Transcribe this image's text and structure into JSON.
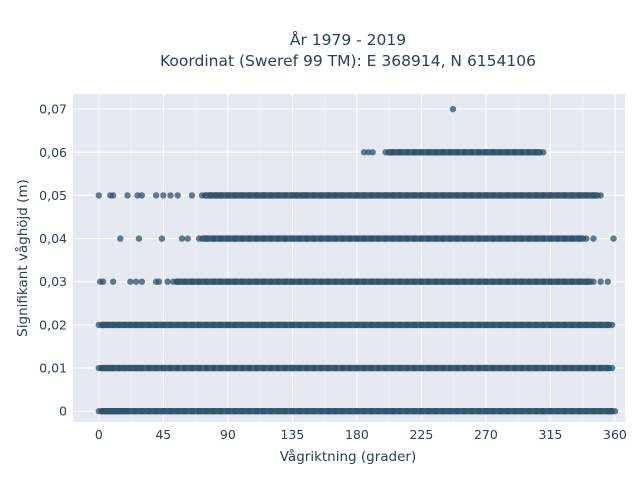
{
  "chart_data": {
    "type": "scatter",
    "title_line1": "År 1979 - 2019",
    "title_line2": "Koordinat (Sweref 99 TM): E 368914, N 6154106",
    "xlabel": "Vågriktning (grader)",
    "ylabel": "Signifikant våghöjd (m)",
    "xlim": [
      -18,
      367
    ],
    "ylim": [
      -0.0025,
      0.0735
    ],
    "xticks": [
      0,
      45,
      90,
      135,
      180,
      225,
      270,
      315,
      360
    ],
    "xtick_labels": [
      "0",
      "45",
      "90",
      "135",
      "180",
      "225",
      "270",
      "315",
      "360"
    ],
    "yticks": [
      0,
      0.01,
      0.02,
      0.03,
      0.04,
      0.05,
      0.06,
      0.07
    ],
    "ytick_labels": [
      "0",
      "0,01",
      "0,02",
      "0,03",
      "0,04",
      "0,05",
      "0,06",
      "0,07"
    ],
    "grid": true,
    "marker_color": "#2e5169",
    "plot_background": "#e5e9f2",
    "series": [
      {
        "x": [
          0,
          2,
          4,
          6,
          8,
          10,
          12,
          14,
          16,
          18,
          20,
          25,
          30,
          35,
          40,
          45,
          50,
          55,
          60,
          65,
          70,
          75,
          80,
          85,
          90,
          95,
          100,
          105,
          110,
          115,
          120,
          125,
          130,
          135,
          140,
          145,
          150,
          155,
          160,
          165,
          170,
          175,
          180,
          185,
          190,
          195,
          200,
          205,
          210,
          215,
          220,
          225,
          230,
          235,
          240,
          245,
          250,
          255,
          260,
          265,
          270,
          275,
          280,
          285,
          290,
          295,
          300,
          305,
          310,
          315,
          320,
          325,
          330,
          335,
          340,
          345,
          350,
          355,
          358,
          360,
          0,
          2,
          4,
          6,
          8,
          10,
          14,
          18,
          22,
          26,
          30,
          35,
          40,
          45,
          50,
          55,
          60,
          65,
          70,
          75,
          80,
          85,
          90,
          95,
          100,
          105,
          110,
          115,
          120,
          125,
          130,
          135,
          140,
          145,
          150,
          155,
          160,
          165,
          170,
          175,
          180,
          185,
          190,
          195,
          200,
          205,
          210,
          215,
          220,
          225,
          230,
          235,
          240,
          245,
          250,
          255,
          260,
          265,
          270,
          275,
          280,
          285,
          290,
          295,
          300,
          305,
          310,
          315,
          320,
          325,
          330,
          335,
          340,
          345,
          350,
          355,
          358,
          0,
          3,
          6,
          10,
          14,
          18,
          22,
          26,
          30,
          35,
          40,
          45,
          50,
          55,
          60,
          65,
          70,
          75,
          80,
          85,
          90,
          95,
          100,
          105,
          110,
          115,
          120,
          125,
          130,
          135,
          140,
          145,
          150,
          155,
          160,
          165,
          170,
          175,
          180,
          185,
          190,
          195,
          200,
          205,
          210,
          215,
          220,
          225,
          230,
          235,
          240,
          245,
          250,
          255,
          260,
          265,
          270,
          275,
          280,
          285,
          290,
          295,
          300,
          305,
          310,
          315,
          320,
          325,
          330,
          335,
          340,
          345,
          350,
          355,
          358,
          1,
          3,
          10,
          22,
          26,
          30,
          40,
          42,
          48,
          52,
          55,
          60,
          65,
          70,
          75,
          80,
          85,
          90,
          95,
          100,
          105,
          110,
          115,
          120,
          125,
          130,
          135,
          140,
          145,
          150,
          155,
          160,
          165,
          170,
          175,
          180,
          185,
          190,
          195,
          200,
          205,
          210,
          215,
          220,
          225,
          230,
          235,
          240,
          245,
          250,
          255,
          260,
          265,
          270,
          275,
          280,
          285,
          290,
          295,
          300,
          305,
          310,
          315,
          320,
          325,
          330,
          335,
          340,
          345,
          350,
          355,
          15,
          28,
          44,
          58,
          62,
          70,
          75,
          80,
          85,
          90,
          95,
          100,
          105,
          110,
          115,
          120,
          125,
          130,
          135,
          140,
          145,
          150,
          155,
          160,
          165,
          170,
          175,
          180,
          185,
          190,
          195,
          200,
          205,
          210,
          215,
          220,
          225,
          230,
          235,
          240,
          245,
          250,
          255,
          260,
          265,
          270,
          275,
          280,
          285,
          290,
          295,
          300,
          305,
          310,
          315,
          320,
          325,
          330,
          335,
          340,
          345,
          359,
          0,
          8,
          10,
          20,
          27,
          30,
          40,
          45,
          50,
          55,
          65,
          72,
          78,
          82,
          85,
          90,
          95,
          100,
          105,
          110,
          115,
          120,
          125,
          130,
          135,
          138,
          142,
          145,
          150,
          155,
          160,
          165,
          170,
          175,
          180,
          185,
          190,
          195,
          200,
          205,
          210,
          215,
          220,
          225,
          230,
          235,
          240,
          245,
          250,
          255,
          260,
          265,
          270,
          275,
          280,
          285,
          290,
          295,
          300,
          305,
          310,
          315,
          320,
          325,
          330,
          335,
          340,
          345,
          350,
          185,
          188,
          191,
          200,
          205,
          210,
          215,
          220,
          225,
          230,
          235,
          240,
          245,
          250,
          255,
          260,
          265,
          270,
          275,
          280,
          285,
          290,
          295,
          300,
          305,
          310,
          247
        ]
      }
    ],
    "rows_y": [
      0,
      0.01,
      0.02,
      0.03,
      0.04,
      0.05,
      0.06,
      0.07
    ],
    "row_counts": [
      80,
      77,
      75,
      71,
      62,
      69,
      26,
      1
    ]
  }
}
